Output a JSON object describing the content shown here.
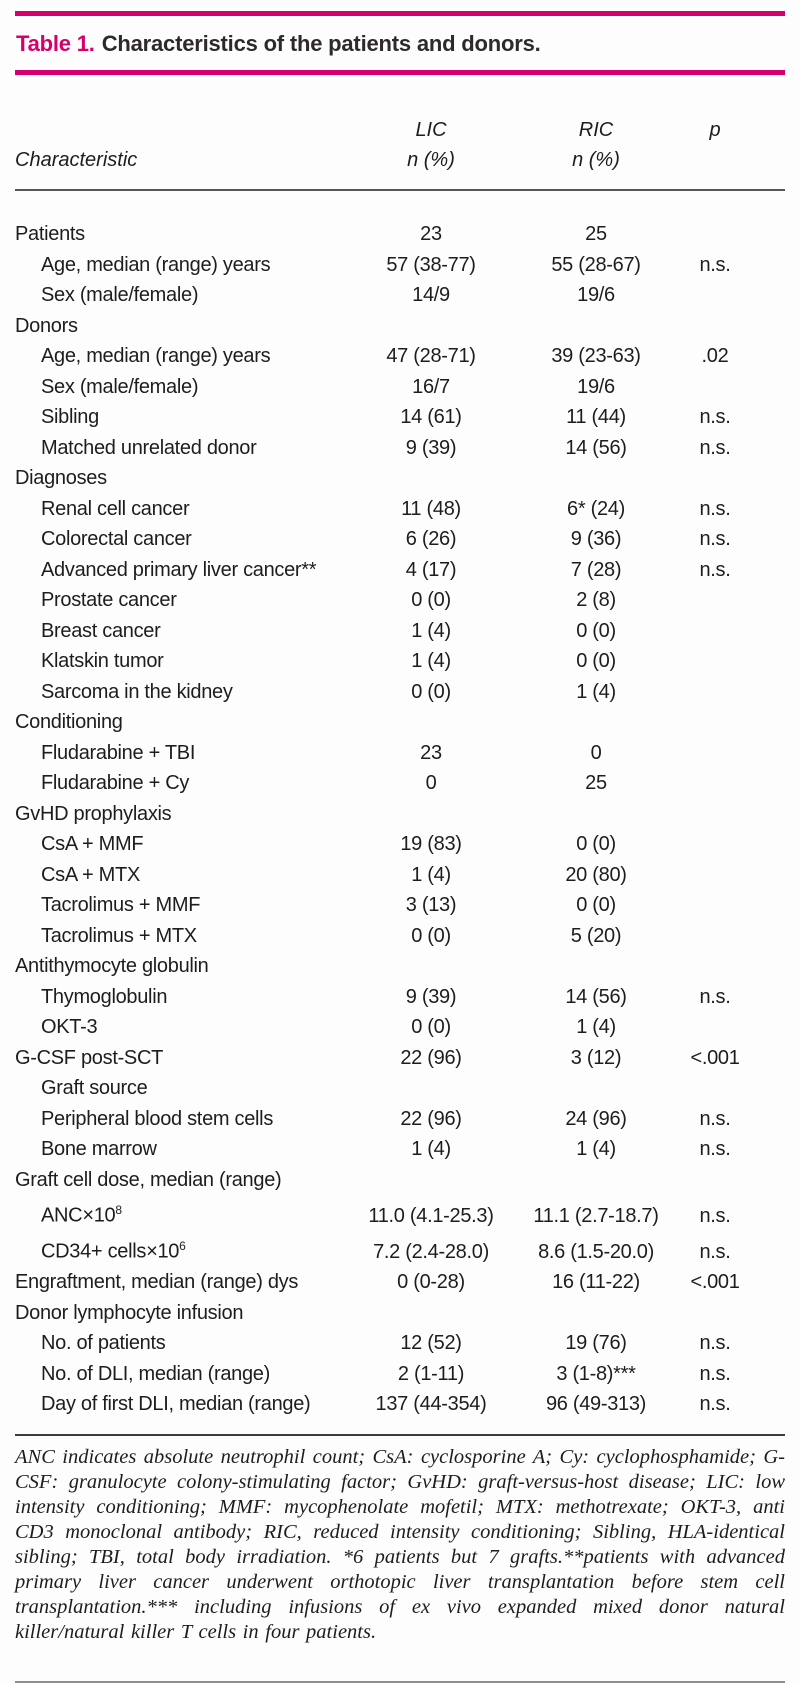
{
  "title": {
    "label": "Table 1.",
    "text": "Characteristics of the patients and donors."
  },
  "header": {
    "characteristic": "Characteristic",
    "lic": "LIC",
    "ric": "RIC",
    "p": "p",
    "n_pct_lic": "n (%)",
    "n_pct_ric": "n (%)"
  },
  "colors": {
    "accent": "#d6006d",
    "text": "#1d1d1b"
  },
  "rows": [
    {
      "label": "Patients",
      "indent": false,
      "lic": "23",
      "ric": "25",
      "p": ""
    },
    {
      "label": "Age, median (range) years",
      "indent": true,
      "lic": "57 (38-77)",
      "ric": "55 (28-67)",
      "p": "n.s."
    },
    {
      "label": "Sex (male/female)",
      "indent": true,
      "lic": "14/9",
      "ric": "19/6",
      "p": ""
    },
    {
      "label": "Donors",
      "indent": false,
      "lic": "",
      "ric": "",
      "p": ""
    },
    {
      "label": "Age, median (range) years",
      "indent": true,
      "lic": "47 (28-71)",
      "ric": "39 (23-63)",
      "p": ".02"
    },
    {
      "label": "Sex (male/female)",
      "indent": true,
      "lic": "16/7",
      "ric": "19/6",
      "p": ""
    },
    {
      "label": "Sibling",
      "indent": true,
      "lic": "14 (61)",
      "ric": "11 (44)",
      "p": "n.s."
    },
    {
      "label": "Matched unrelated donor",
      "indent": true,
      "lic": "9 (39)",
      "ric": "14 (56)",
      "p": "n.s."
    },
    {
      "label": "Diagnoses",
      "indent": false,
      "lic": "",
      "ric": "",
      "p": ""
    },
    {
      "label": "Renal cell cancer",
      "indent": true,
      "lic": "11 (48)",
      "ric": "6* (24)",
      "p": "n.s."
    },
    {
      "label": "Colorectal cancer",
      "indent": true,
      "lic": "6 (26)",
      "ric": "9 (36)",
      "p": "n.s."
    },
    {
      "label": "Advanced primary liver cancer**",
      "indent": true,
      "lic": "4 (17)",
      "ric": "7 (28)",
      "p": "n.s."
    },
    {
      "label": "Prostate cancer",
      "indent": true,
      "lic": "0 (0)",
      "ric": "2 (8)",
      "p": ""
    },
    {
      "label": "Breast cancer",
      "indent": true,
      "lic": "1 (4)",
      "ric": "0 (0)",
      "p": ""
    },
    {
      "label": "Klatskin tumor",
      "indent": true,
      "lic": "1 (4)",
      "ric": "0 (0)",
      "p": ""
    },
    {
      "label": "Sarcoma in the kidney",
      "indent": true,
      "lic": "0 (0)",
      "ric": "1 (4)",
      "p": ""
    },
    {
      "label": "Conditioning",
      "indent": false,
      "lic": "",
      "ric": "",
      "p": ""
    },
    {
      "label": "Fludarabine + TBI",
      "indent": true,
      "lic": "23",
      "ric": "0",
      "p": ""
    },
    {
      "label": "Fludarabine + Cy",
      "indent": true,
      "lic": "0",
      "ric": "25",
      "p": ""
    },
    {
      "label": "GvHD prophylaxis",
      "indent": false,
      "lic": "",
      "ric": "",
      "p": ""
    },
    {
      "label": "CsA + MMF",
      "indent": true,
      "lic": "19 (83)",
      "ric": "0 (0)",
      "p": ""
    },
    {
      "label": "CsA + MTX",
      "indent": true,
      "lic": "1 (4)",
      "ric": "20 (80)",
      "p": ""
    },
    {
      "label": "Tacrolimus + MMF",
      "indent": true,
      "lic": "3 (13)",
      "ric": "0 (0)",
      "p": ""
    },
    {
      "label": "Tacrolimus + MTX",
      "indent": true,
      "lic": "0 (0)",
      "ric": "5 (20)",
      "p": ""
    },
    {
      "label": "Antithymocyte globulin",
      "indent": false,
      "lic": "",
      "ric": "",
      "p": ""
    },
    {
      "label": "Thymoglobulin",
      "indent": true,
      "lic": "9 (39)",
      "ric": "14 (56)",
      "p": "n.s."
    },
    {
      "label": "OKT-3",
      "indent": true,
      "lic": "0 (0)",
      "ric": "1 (4)",
      "p": ""
    },
    {
      "label": "G-CSF post-SCT",
      "indent": false,
      "lic": "22 (96)",
      "ric": "3 (12)",
      "p": "<.001"
    },
    {
      "label": "Graft source",
      "indent": true,
      "lic": "",
      "ric": "",
      "p": ""
    },
    {
      "label": "Peripheral blood stem cells",
      "indent": true,
      "lic": "22 (96)",
      "ric": "24 (96)",
      "p": "n.s."
    },
    {
      "label": "Bone marrow",
      "indent": true,
      "lic": "1 (4)",
      "ric": "1 (4)",
      "p": "n.s."
    },
    {
      "label": "Graft cell dose, median (range)",
      "indent": false,
      "lic": "",
      "ric": "",
      "p": ""
    },
    {
      "label": "ANC×10",
      "sup": "8",
      "indent": true,
      "lic": "11.0 (4.1-25.3)",
      "ric": "11.1 (2.7-18.7)",
      "p": "n.s."
    },
    {
      "label": "CD34+ cells×10",
      "sup": "6",
      "indent": true,
      "lic": "7.2 (2.4-28.0)",
      "ric": "8.6 (1.5-20.0)",
      "p": "n.s."
    },
    {
      "label": "Engraftment, median (range) dys",
      "indent": false,
      "lic": "0 (0-28)",
      "ric": "16 (11-22)",
      "p": "<.001"
    },
    {
      "label": "Donor lymphocyte infusion",
      "indent": false,
      "lic": "",
      "ric": "",
      "p": ""
    },
    {
      "label": "No. of patients",
      "indent": true,
      "lic": "12 (52)",
      "ric": "19 (76)",
      "p": "n.s."
    },
    {
      "label": "No. of DLI, median (range)",
      "indent": true,
      "lic": "2 (1-11)",
      "ric": "3 (1-8)***",
      "p": "n.s."
    },
    {
      "label": "Day of first DLI, median (range)",
      "indent": true,
      "lic": "137 (44-354)",
      "ric": "96 (49-313)",
      "p": "n.s."
    }
  ],
  "footnote": "ANC indicates absolute neutrophil count; CsA: cyclosporine A; Cy: cyclophosphamide; G-CSF: granulocyte colony-stimulating factor; GvHD: graft-versus-host disease; LIC: low intensity conditioning; MMF: mycophenolate mofetil; MTX: methotrexate; OKT-3, anti CD3 monoclonal antibody; RIC, reduced intensity conditioning; Sibling, HLA-identical sibling; TBI, total body irradiation. *6 patients but 7 grafts.**patients with advanced primary liver cancer underwent orthotopic liver transplantation before stem cell transplantation.*** including infusions of ex vivo expanded mixed donor natural killer/natural killer T cells in four patients."
}
